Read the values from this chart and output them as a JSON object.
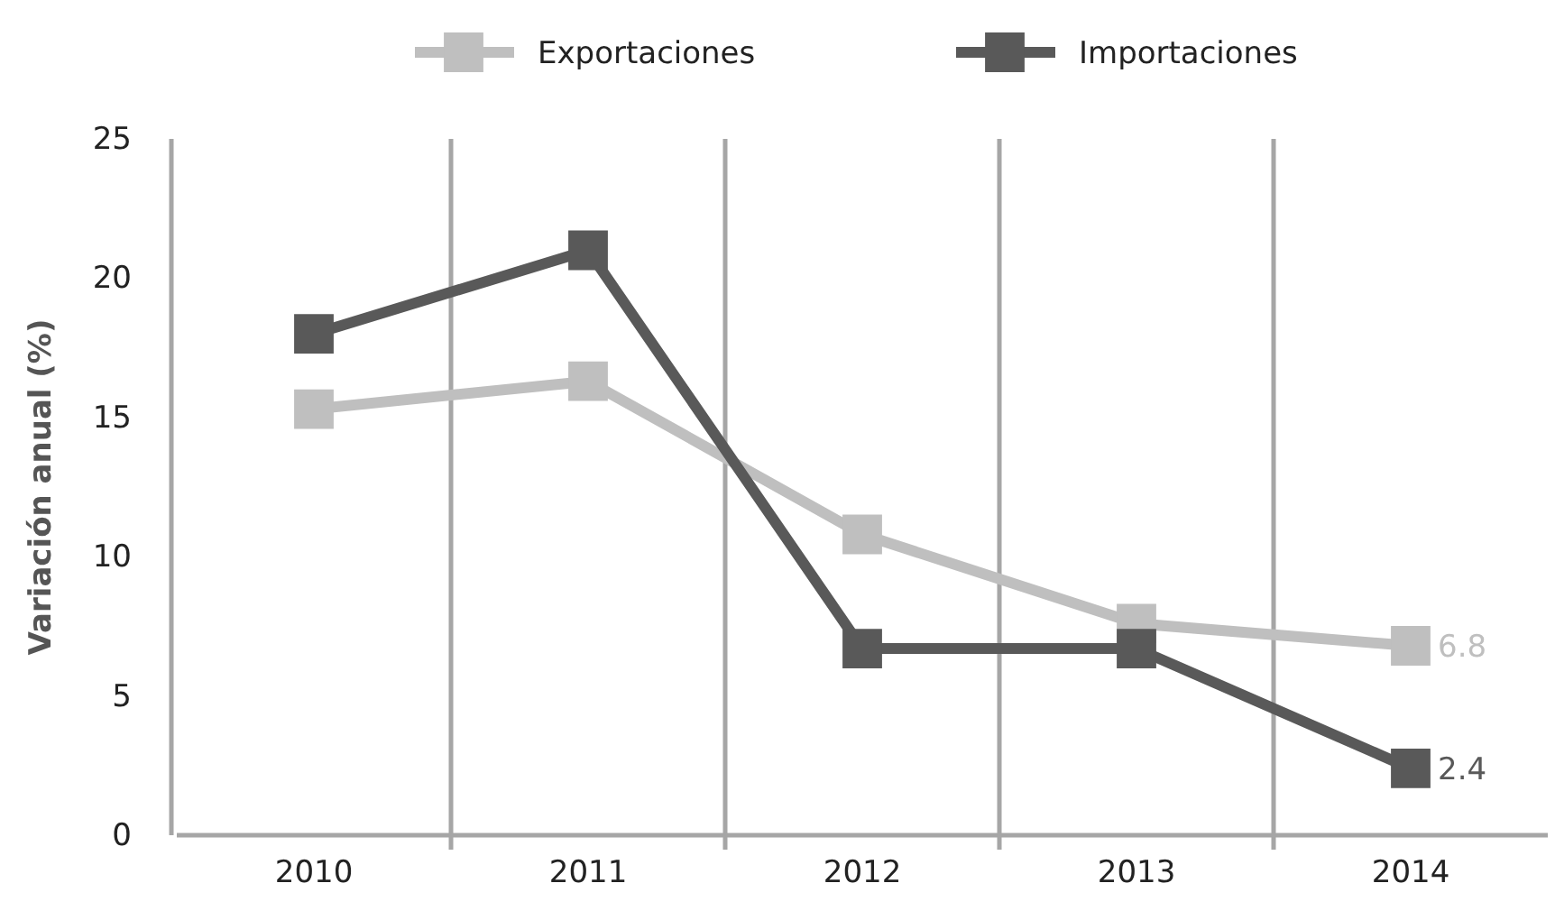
{
  "chart_data": {
    "type": "line",
    "ylabel": "Variación anual (%)",
    "categories": [
      "2010",
      "2011",
      "2012",
      "2013",
      "2014"
    ],
    "series": [
      {
        "name": "Exportaciones",
        "color": "#bfbfbf",
        "values": [
          15.3,
          16.3,
          10.8,
          7.6,
          6.8
        ],
        "value_labels": [
          null,
          null,
          null,
          null,
          "6.8"
        ]
      },
      {
        "name": "Importaciones",
        "color": "#595959",
        "values": [
          18,
          21,
          6.7,
          6.7,
          2.4
        ],
        "value_labels": [
          null,
          null,
          null,
          null,
          "2.4"
        ]
      }
    ],
    "ylim": [
      0,
      25
    ],
    "yticks": [
      0,
      5,
      10,
      15,
      20,
      25
    ],
    "grid": "x",
    "legend": "top",
    "marker": "square",
    "line_style": "solid"
  }
}
